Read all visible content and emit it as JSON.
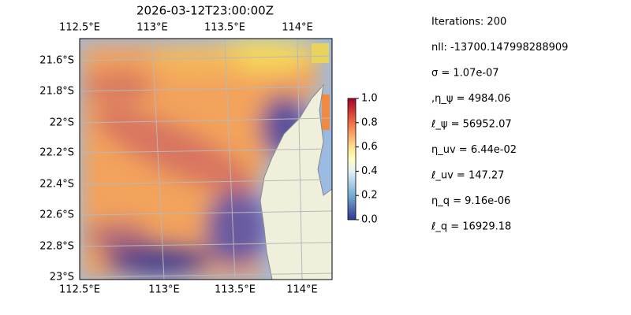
{
  "title": "2026-03-12T23:00:00Z",
  "map": {
    "top_lon_labels": [
      "112.5°E",
      "113°E",
      "113.5°E",
      "114°E"
    ],
    "bottom_lon_labels": [
      "112.5°E",
      "113°E",
      "113.5°E",
      "114°E"
    ],
    "lat_labels": [
      "21.6°S",
      "21.8°S",
      "22°S",
      "22.2°S",
      "22.4°S",
      "22.6°S",
      "22.8°S",
      "23°S"
    ]
  },
  "colorbar": {
    "ticks": [
      "0.0",
      "0.2",
      "0.4",
      "0.6",
      "0.8",
      "1.0"
    ]
  },
  "stats": [
    "Iterations: 200",
    "nll: -13700.147998288909",
    "σ = 1.07e-07",
    ",η_ψ = 4984.06",
    "ℓ_ψ = 56952.07",
    "η_uv = 6.44e-02",
    "ℓ_uv = 147.27",
    "η_q = 9.16e-06",
    "ℓ_q = 16929.18"
  ]
}
